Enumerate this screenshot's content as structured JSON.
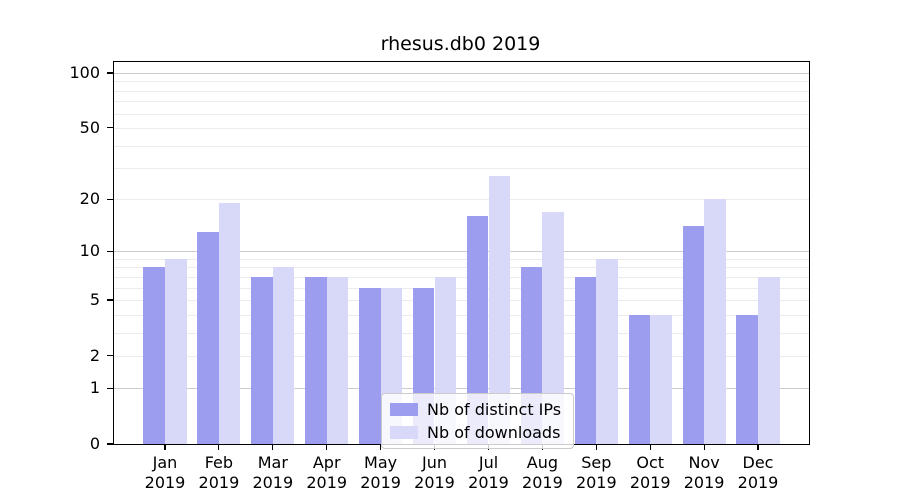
{
  "chart_data": {
    "type": "bar",
    "title": "rhesus.db0 2019",
    "categories": [
      "Jan",
      "Feb",
      "Mar",
      "Apr",
      "May",
      "Jun",
      "Jul",
      "Aug",
      "Sep",
      "Oct",
      "Nov",
      "Dec"
    ],
    "year_label": "2019",
    "series": [
      {
        "name": "Nb of distinct IPs",
        "color": "#9d9df0",
        "values": [
          8,
          13,
          7,
          7,
          6,
          6,
          16,
          8,
          7,
          4,
          14,
          4
        ]
      },
      {
        "name": "Nb of downloads",
        "color": "#d8d8f8",
        "values": [
          9,
          19,
          8,
          7,
          6,
          7,
          27,
          17,
          9,
          4,
          20,
          7
        ]
      }
    ],
    "xlabel": "",
    "ylabel": "",
    "y_scale": "log10(value+1)",
    "ylim": [
      0,
      115
    ],
    "y_major_ticks": [
      0,
      1,
      2,
      5,
      10,
      20,
      50,
      100
    ],
    "y_decade_gridlines": [
      1,
      10,
      100
    ],
    "y_minor_gridlines": [
      2,
      3,
      4,
      5,
      6,
      7,
      8,
      9,
      20,
      30,
      40,
      50,
      60,
      70,
      80,
      90
    ],
    "grid": "on",
    "legend_position": "lower center"
  }
}
